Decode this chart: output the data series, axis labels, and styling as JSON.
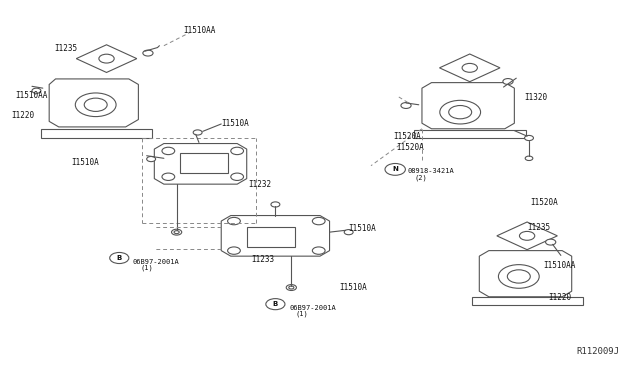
{
  "bg_color": "#ffffff",
  "line_color": "#555555",
  "dashed_color": "#888888",
  "text_color": "#111111",
  "fig_width": 6.4,
  "fig_height": 3.72,
  "watermark": "R112009J",
  "labels": {
    "I1235_tl": [
      0.085,
      0.86,
      "I1235"
    ],
    "I1510AA_tl": [
      0.29,
      0.93,
      "I1510AA"
    ],
    "I1510AA_l": [
      0.05,
      0.73,
      "I1510AA"
    ],
    "I1220_l": [
      0.04,
      0.61,
      "I1220"
    ],
    "I1510A_bl": [
      0.12,
      0.5,
      "I1510A"
    ],
    "I1510A_m": [
      0.25,
      0.66,
      "I1510A"
    ],
    "I1232": [
      0.38,
      0.52,
      "I1232"
    ],
    "I1233": [
      0.4,
      0.33,
      "I1233"
    ],
    "I1510A_br": [
      0.56,
      0.4,
      "I1510A"
    ],
    "I1510A_bc": [
      0.53,
      0.22,
      "I1510A"
    ],
    "bolt_b1": [
      0.18,
      0.27,
      "B 06B97-2001A\n(1)"
    ],
    "bolt_b2": [
      0.46,
      0.14,
      "B 06B97-2001A\n(1)"
    ],
    "I1320": [
      0.82,
      0.7,
      "I1320"
    ],
    "I1520A_tl": [
      0.66,
      0.6,
      "I1520A"
    ],
    "I1520A_br": [
      0.76,
      0.38,
      "I1520A"
    ],
    "nut_n": [
      0.63,
      0.47,
      "N 08918-3421A\n(2)"
    ],
    "I1235_br": [
      0.82,
      0.3,
      "I1235"
    ],
    "I1510AA_br": [
      0.84,
      0.22,
      "I1510AA"
    ],
    "I1220_br": [
      0.85,
      0.15,
      "I1220"
    ]
  }
}
